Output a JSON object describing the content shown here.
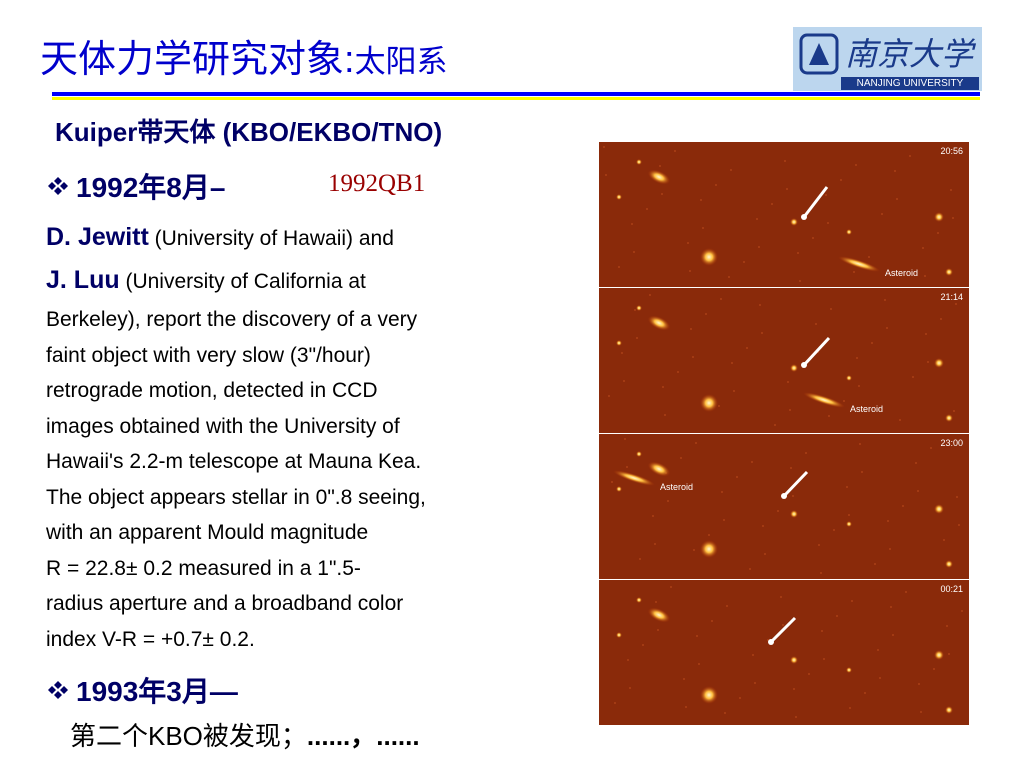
{
  "title": {
    "main": "天体力学研究对象:",
    "sub": "太阳系"
  },
  "logo": {
    "name": "南京大学",
    "english": "NANJING UNIVERSITY"
  },
  "heading": "Kuiper带天体 (KBO/EKBO/TNO)",
  "bullet1": {
    "date": "1992年8月–",
    "object": "1992QB1"
  },
  "jewitt": {
    "name": "D. Jewitt",
    "rest": "(University of Hawaii) and"
  },
  "luu": {
    "name": "J. Luu",
    "rest": "(University of California at"
  },
  "body_lines": [
    "Berkeley), report the discovery of a very",
    "faint object with very slow (3\"/hour)",
    "retrograde motion, detected in CCD",
    "images obtained with the University of",
    "Hawaii's 2.2-m telescope at Mauna Kea.",
    "The object appears stellar in 0\".8 seeing,",
    "with an apparent Mould magnitude",
    "R = 22.8± 0.2 measured in a 1\".5-",
    "radius aperture and a broadband color",
    "index V-R = +0.7±  0.2."
  ],
  "bullet2": {
    "date": "1993年3月—",
    "text": "第二个KBO被发现；",
    "dots": "......，......"
  },
  "panels": [
    {
      "time": "20:56",
      "label": "Asteroid"
    },
    {
      "time": "21:14",
      "label": "Asteroid"
    },
    {
      "time": "23:00",
      "label": "Asteroid"
    },
    {
      "time": "00:21"
    }
  ]
}
